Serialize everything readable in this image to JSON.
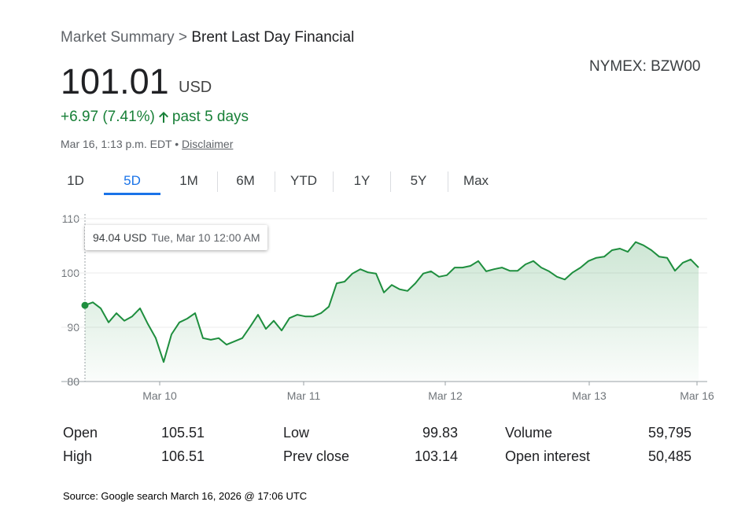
{
  "header": {
    "breadcrumb": "Market Summary",
    "separator": ">",
    "instrument": "Brent Last Day Financial",
    "price": "101.01",
    "currency": "USD",
    "exchange": "NYMEX: BZW00",
    "change": "+6.97 (7.41%)",
    "period": "past 5 days",
    "timestamp": "Mar 16, 1:13 p.m. EDT",
    "bullet": "•",
    "disclaimer": "Disclaimer"
  },
  "tabs": [
    "1D",
    "5D",
    "1M",
    "6M",
    "YTD",
    "1Y",
    "5Y",
    "Max"
  ],
  "tooltip": {
    "price": "94.04 USD",
    "time": "Tue, Mar 10 12:00 AM"
  },
  "chart_data": {
    "type": "line",
    "color": "#1e8e3e",
    "values": [
      94.04,
      94.6,
      93.5,
      90.9,
      92.6,
      91.2,
      92.0,
      93.5,
      90.6,
      88.0,
      83.6,
      88.7,
      90.9,
      91.6,
      92.6,
      88.0,
      87.7,
      88.0,
      86.8,
      87.4,
      88.0,
      90.1,
      92.3,
      89.7,
      91.2,
      89.4,
      91.7,
      92.3,
      92.0,
      92.0,
      92.6,
      93.8,
      98.1,
      98.4,
      99.9,
      100.7,
      100.1,
      99.9,
      96.4,
      97.8,
      97.0,
      96.7,
      98.1,
      99.9,
      100.3,
      99.3,
      99.6,
      101.0,
      101.0,
      101.3,
      102.2,
      100.3,
      100.7,
      101.0,
      100.4,
      100.4,
      101.6,
      102.2,
      101.0,
      100.3,
      99.3,
      98.8,
      100.1,
      101.0,
      102.2,
      102.8,
      103.0,
      104.2,
      104.5,
      103.9,
      105.7,
      105.1,
      104.2,
      103.0,
      102.8,
      100.4,
      101.9,
      102.5,
      101.0
    ],
    "xlim": [
      0,
      79.1
    ],
    "xticks": [
      {
        "value": 9.5,
        "label": "Mar 10"
      },
      {
        "value": 27.8,
        "label": "Mar 11"
      },
      {
        "value": 45.8,
        "label": "Mar 12"
      },
      {
        "value": 64.1,
        "label": "Mar 13"
      },
      {
        "value": 77.8,
        "label": "Mar 16"
      }
    ],
    "ylim": [
      80,
      110
    ],
    "yticks": [
      80,
      90,
      100,
      110
    ],
    "grid": true
  },
  "stats": [
    [
      "Open",
      "105.51",
      "Low",
      "99.83",
      "Volume",
      "59,795"
    ],
    [
      "High",
      "106.51",
      "Prev close",
      "103.14",
      "Open interest",
      "50,485"
    ]
  ],
  "source": "Source:  Google search March 16, 2026 @ 17:06 UTC"
}
